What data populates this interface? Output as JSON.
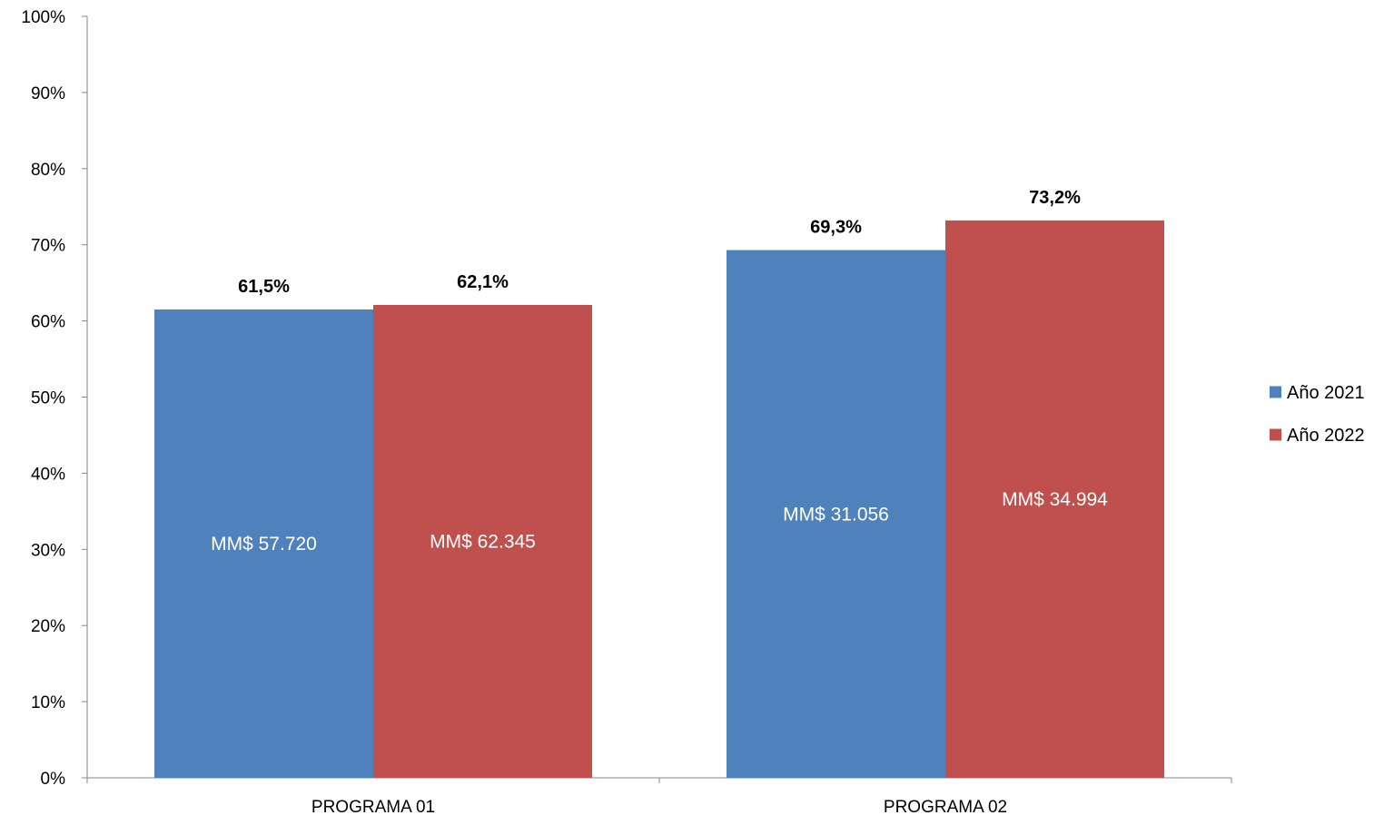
{
  "chart_data": {
    "type": "bar",
    "categories": [
      "PROGRAMA 01",
      "PROGRAMA 02"
    ],
    "series": [
      {
        "name": "Año 2021",
        "color": "#4F81BD",
        "values": [
          61.5,
          69.3
        ],
        "top_labels": [
          "61,5%",
          "69,3%"
        ],
        "inner_labels": [
          "MM$ 57.720",
          "MM$ 31.056"
        ]
      },
      {
        "name": "Año 2022",
        "color": "#C0504D",
        "values": [
          62.1,
          73.2
        ],
        "top_labels": [
          "62,1%",
          "73,2%"
        ],
        "inner_labels": [
          "MM$ 62.345",
          "MM$ 34.994"
        ]
      }
    ],
    "ylim": [
      0,
      100
    ],
    "y_ticks": [
      "0%",
      "10%",
      "20%",
      "30%",
      "40%",
      "50%",
      "60%",
      "70%",
      "80%",
      "90%",
      "100%"
    ],
    "title": "",
    "xlabel": "",
    "ylabel": "",
    "grid": false,
    "legend_position": "right",
    "axis_color": "#868686"
  }
}
